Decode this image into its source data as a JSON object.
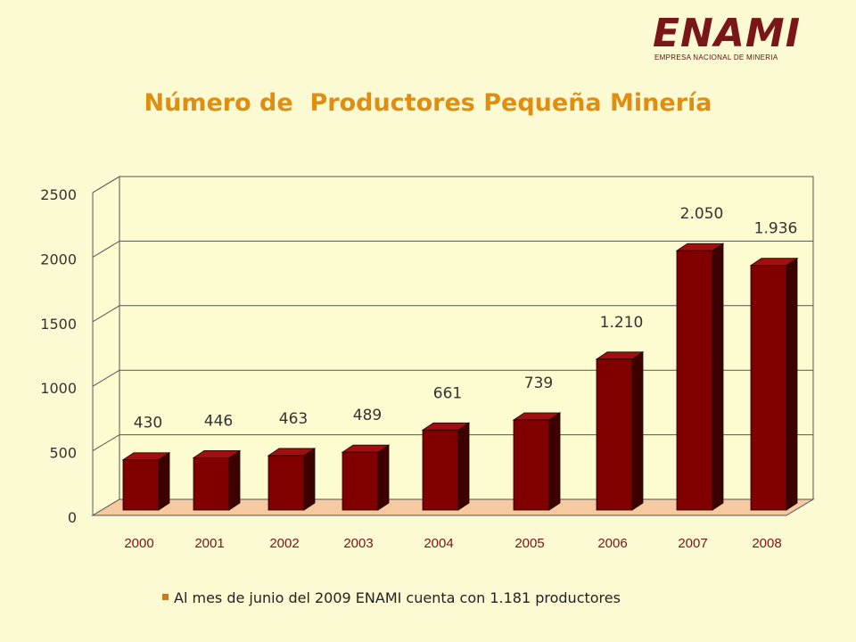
{
  "logo": {
    "word": "ENAMI",
    "subtitle": "EMPRESA NACIONAL DE MINERIA"
  },
  "chart_data": {
    "type": "bar",
    "title": "Número de  Productores Pequeña Minería",
    "xlabel": "",
    "ylabel": "",
    "categories": [
      "2000",
      "2001",
      "2002",
      "2003",
      "2004",
      "2005",
      "2006",
      "2007",
      "2008"
    ],
    "values": [
      430,
      446,
      463,
      489,
      661,
      739,
      1210,
      2050,
      1936
    ],
    "value_labels": [
      "430",
      "446",
      "463",
      "489",
      "661",
      "739",
      "1.210",
      "2.050",
      "1.936"
    ],
    "ylim": [
      0,
      2500
    ],
    "yticks": [
      "0",
      "500",
      "1000",
      "1500",
      "2000",
      "2500"
    ],
    "grid": true,
    "legend": "none",
    "style": "3d",
    "colors": {
      "bar_front": "#800000",
      "bar_side": "#3d0000",
      "bar_top": "#a01010",
      "floor": "#f7c9a0",
      "wall": "#fdfbd0",
      "title": "#e08e12",
      "label": "#333333",
      "xtick": "#7a1518"
    }
  },
  "footnote": "Al mes de junio del 2009 ENAMI cuenta con 1.181 productores"
}
